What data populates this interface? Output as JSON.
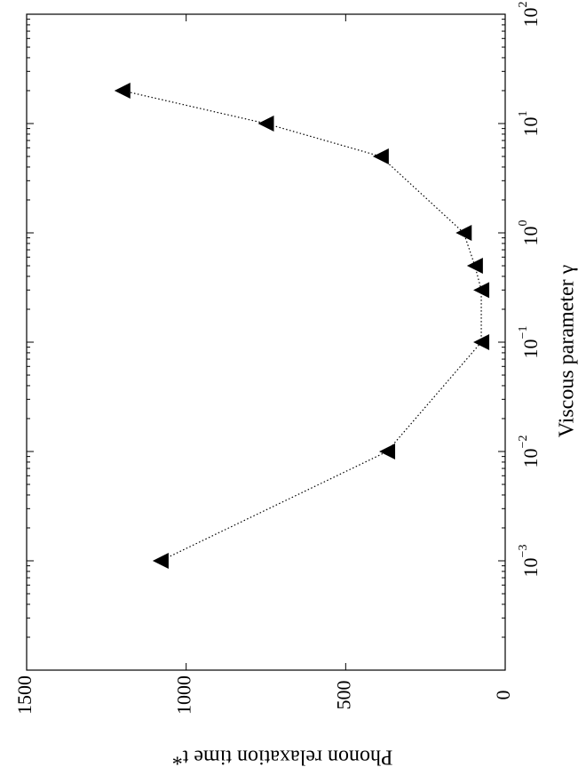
{
  "chart_data": {
    "type": "scatter",
    "orientation": "rotated-90-ccw",
    "xlabel": "Viscous parameter γ",
    "ylabel": "Phonon relaxation time t*",
    "xscale": "log",
    "xlim": [
      0.0001,
      100
    ],
    "ylim": [
      0,
      1500
    ],
    "x_ticks": [
      0.001,
      0.01,
      0.1,
      1,
      10,
      100
    ],
    "x_tick_labels": [
      {
        "base": "10",
        "exp": "−3"
      },
      {
        "base": "10",
        "exp": "−2"
      },
      {
        "base": "10",
        "exp": "−1"
      },
      {
        "base": "10",
        "exp": "0"
      },
      {
        "base": "10",
        "exp": "1"
      },
      {
        "base": "10",
        "exp": "2"
      }
    ],
    "y_ticks": [
      0,
      500,
      1000,
      1500
    ],
    "y_tick_labels": [
      "0",
      "500",
      "1000",
      "1500"
    ],
    "series": [
      {
        "marker": "triangle",
        "line": "dotted",
        "color": "#000000",
        "x": [
          0.001,
          0.01,
          0.1,
          0.3,
          0.5,
          1,
          5,
          10,
          20
        ],
        "y": [
          1080,
          370,
          75,
          75,
          95,
          130,
          390,
          750,
          1200
        ]
      }
    ],
    "grid": false
  }
}
